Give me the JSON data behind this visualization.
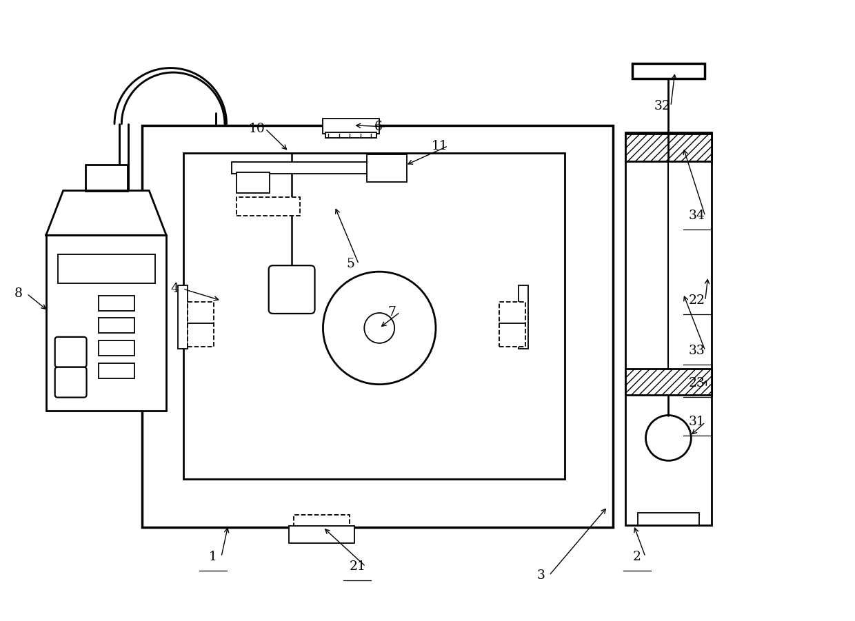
{
  "bg_color": "#ffffff",
  "lc": "#000000",
  "lw": 2.0,
  "tlw": 1.3,
  "figsize": [
    12.4,
    9.01
  ],
  "dpi": 100
}
